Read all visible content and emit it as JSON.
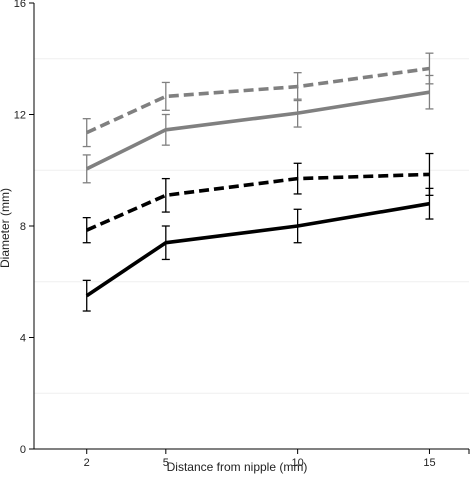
{
  "chart_data": {
    "type": "line",
    "xlabel": "Distance from nipple (mm)",
    "ylabel": "Diameter (mm)",
    "x_ticks": [
      2,
      5,
      10,
      15
    ],
    "y_ticks": [
      0,
      4,
      8,
      12,
      16
    ],
    "xlim": [
      0,
      16.5
    ],
    "ylim": [
      0,
      16
    ],
    "grid": {
      "horizontal_at": [
        2,
        6,
        10,
        14
      ]
    },
    "legend": "none",
    "series": [
      {
        "color": "#808080",
        "dash": "dashed",
        "x": [
          2,
          5,
          10,
          15
        ],
        "y": [
          11.35,
          12.65,
          13.0,
          13.65
        ],
        "err": [
          0.5,
          0.5,
          0.5,
          0.55
        ]
      },
      {
        "color": "#808080",
        "dash": "solid",
        "x": [
          2,
          5,
          10,
          15
        ],
        "y": [
          10.05,
          11.45,
          12.05,
          12.8
        ],
        "err": [
          0.5,
          0.55,
          0.5,
          0.6
        ]
      },
      {
        "color": "#000000",
        "dash": "dashed",
        "x": [
          2,
          5,
          10,
          15
        ],
        "y": [
          7.85,
          9.1,
          9.7,
          9.85
        ],
        "err": [
          0.45,
          0.6,
          0.55,
          0.75
        ]
      },
      {
        "color": "#000000",
        "dash": "solid",
        "x": [
          2,
          5,
          10,
          15
        ],
        "y": [
          5.5,
          7.4,
          8.0,
          8.8
        ],
        "err": [
          0.55,
          0.6,
          0.6,
          0.55
        ]
      }
    ]
  }
}
